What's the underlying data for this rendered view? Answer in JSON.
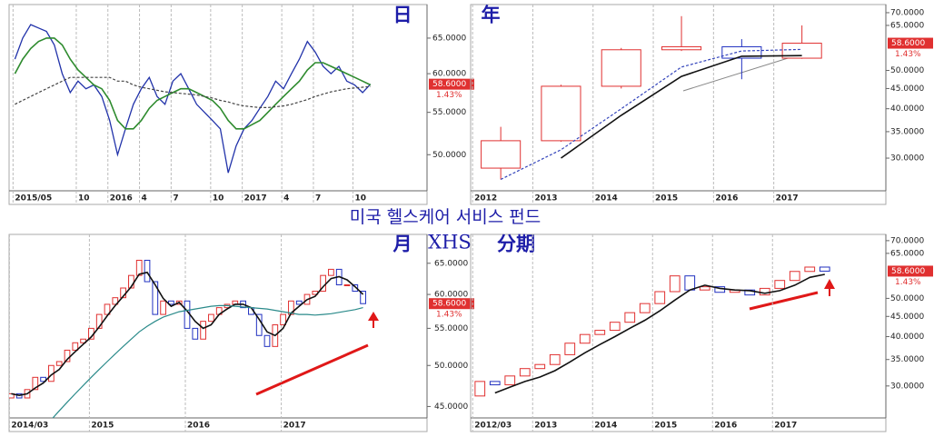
{
  "title": "미국 헬스케어 서비스 펀드",
  "ticker": "XHS",
  "chart_data": [
    {
      "type": "line",
      "title": "日",
      "log_scale": true,
      "color": "#2233aa",
      "categories": [
        "2015/05",
        null,
        null,
        null,
        null,
        null,
        null,
        null,
        "10",
        null,
        null,
        null,
        "2016",
        null,
        null,
        null,
        "4",
        null,
        null,
        null,
        "7",
        null,
        null,
        null,
        null,
        "10",
        null,
        null,
        null,
        "2017",
        null,
        null,
        null,
        null,
        "4",
        null,
        null,
        null,
        "7",
        null,
        null,
        null,
        null,
        "10",
        null,
        null
      ],
      "values": [
        62,
        65,
        67,
        66.5,
        66,
        64,
        60,
        57.5,
        59,
        58,
        58.5,
        57,
        54,
        50,
        53,
        56,
        58,
        59.5,
        57,
        56,
        59,
        60,
        58,
        56,
        55,
        54,
        53,
        48,
        51,
        53,
        54,
        55.5,
        57,
        59,
        58,
        60,
        62,
        64.5,
        63,
        61,
        60,
        61,
        59,
        58.5,
        57.5,
        58.6
      ],
      "overlays": [
        {
          "color": "#2e8b2e",
          "dashed": false,
          "values": [
            60,
            62,
            63.5,
            64.5,
            65,
            65,
            64,
            62,
            60.5,
            59.5,
            58.5,
            58,
            56.5,
            54,
            53,
            53,
            54,
            55.5,
            56.5,
            57,
            57.5,
            58,
            58,
            57.5,
            57,
            56.5,
            55.5,
            54,
            53,
            53,
            53.5,
            54,
            55,
            56,
            57,
            58,
            59,
            60.5,
            61.5,
            61.5,
            61,
            60.5,
            60,
            59.5,
            59,
            58.5
          ]
        },
        {
          "color": "#444444",
          "dashed": true,
          "values": [
            56,
            56.5,
            57,
            57.5,
            58,
            58.5,
            59,
            59.5,
            59.5,
            59.5,
            59.5,
            59.5,
            59.5,
            59,
            59,
            58.5,
            58.2,
            58,
            57.8,
            57.6,
            57.5,
            57.4,
            57.3,
            57.2,
            57,
            56.8,
            56.5,
            56.3,
            56,
            55.8,
            55.7,
            55.6,
            55.6,
            55.7,
            55.8,
            56,
            56.3,
            56.6,
            57,
            57.3,
            57.6,
            57.8,
            58,
            58.1,
            58.2,
            58.3
          ]
        }
      ],
      "ylim": [
        46.1,
        70.1
      ],
      "yticks": [
        {
          "value": 50,
          "label": "50.0000"
        },
        {
          "value": 55,
          "label": "55.0000"
        },
        {
          "value": 60,
          "label": "60.0000"
        },
        {
          "value": 65,
          "label": "65.0000"
        }
      ],
      "last_label": "58.6000",
      "change_label": "1.43%"
    },
    {
      "type": "candlestick",
      "title": "年",
      "log_scale": true,
      "up_color": "#e03030",
      "down_color": "#2030c0",
      "categories": [
        "2012",
        "2013",
        "2014",
        "2015",
        "2016",
        "2017"
      ],
      "open": [
        28.3,
        33.2,
        45.6,
        56.4,
        57.4,
        53.7
      ],
      "high": [
        36,
        46,
        57,
        68.6,
        60,
        65
      ],
      "low": [
        26.5,
        33,
        45,
        56,
        47.5,
        53.5
      ],
      "close": [
        33.2,
        45.6,
        56.4,
        57.4,
        53.7,
        58.6
      ],
      "overlays": [
        {
          "color": "#111111",
          "dashed": false,
          "values": [
            null,
            30,
            38.5,
            48.3,
            54.3,
            54.5
          ]
        },
        {
          "color": "#3344bb",
          "dashed": true,
          "values": [
            26.5,
            31.5,
            40,
            51,
            56,
            56.5
          ]
        }
      ],
      "ylim": [
        24.8,
        73.4
      ],
      "yticks": [
        {
          "value": 30,
          "label": "30.0000"
        },
        {
          "value": 35,
          "label": "35.0000"
        },
        {
          "value": 40,
          "label": "40.0000"
        },
        {
          "value": 45,
          "label": "45.0000"
        },
        {
          "value": 50,
          "label": "50.0000"
        },
        {
          "value": 65,
          "label": "65.0000"
        },
        {
          "value": 70,
          "label": "70.0000"
        }
      ],
      "last_label": "58.6000",
      "change_label": "1.43%"
    },
    {
      "type": "candlestick",
      "title": "月",
      "log_scale": true,
      "up_color": "#e03030",
      "down_color": "#2030c0",
      "categories": [
        "2014/03",
        null,
        null,
        null,
        null,
        null,
        null,
        null,
        null,
        null,
        "2015",
        null,
        null,
        null,
        null,
        null,
        null,
        null,
        null,
        null,
        null,
        null,
        "2016",
        null,
        null,
        null,
        null,
        null,
        null,
        null,
        null,
        null,
        null,
        null,
        "2017",
        null,
        null,
        null,
        null,
        null,
        null,
        null,
        null,
        null,
        null
      ],
      "open": [
        46,
        46.5,
        46,
        47,
        48.5,
        48,
        50,
        50.5,
        52,
        53,
        53.5,
        55,
        57,
        58.5,
        59.5,
        61,
        63,
        65.5,
        62,
        57,
        59,
        58.5,
        59,
        55,
        53.5,
        56,
        57,
        58,
        58.5,
        59,
        58,
        57,
        54,
        52.5,
        55.5,
        57,
        59,
        58.5,
        60,
        60.5,
        63,
        64,
        61.5,
        61.5,
        60.5
      ],
      "close": [
        46.5,
        46,
        47,
        48.5,
        48,
        50,
        50.5,
        52,
        53,
        53.5,
        55,
        57,
        58.5,
        59.5,
        61,
        63,
        65.5,
        62,
        57,
        59,
        58.5,
        59,
        55,
        53.5,
        56,
        57,
        58,
        58.5,
        59,
        58,
        57,
        54,
        52.5,
        55.5,
        57,
        59,
        58.5,
        60,
        60.5,
        63,
        64,
        61.5,
        61.5,
        60.5,
        58.6
      ],
      "overlays": [
        {
          "color": "#111111",
          "dashed": false,
          "values": [
            46.5,
            46.3,
            46.5,
            47.2,
            47.8,
            48.8,
            49.5,
            50.8,
            51.8,
            52.8,
            53.8,
            55.2,
            56.8,
            58.3,
            59.7,
            61.2,
            63.2,
            63.5,
            61.5,
            59.4,
            58.2,
            58.8,
            57.5,
            56,
            55,
            55.5,
            57,
            57.8,
            58.5,
            58.5,
            58,
            56.3,
            54.5,
            54,
            55,
            57.2,
            58.2,
            59.2,
            59.7,
            61.2,
            62.5,
            62.8,
            62.3,
            61.2,
            60
          ]
        },
        {
          "color": "#2a8a8a",
          "dashed": false,
          "values": [
            null,
            null,
            null,
            null,
            null,
            43.5,
            44.5,
            45.5,
            46.5,
            47.5,
            48.5,
            49.5,
            50.5,
            51.5,
            52.5,
            53.5,
            54.5,
            55.3,
            56,
            56.6,
            57,
            57.4,
            57.6,
            57.8,
            58,
            58.2,
            58.3,
            58.3,
            58.2,
            58.1,
            58,
            57.9,
            57.8,
            57.6,
            57.4,
            57.2,
            57,
            57,
            56.9,
            57,
            57.1,
            57.3,
            57.5,
            57.7,
            58
          ]
        }
      ],
      "ylim": [
        43.7,
        70.0
      ],
      "yticks": [
        {
          "value": 45,
          "label": "45.0000"
        },
        {
          "value": 50,
          "label": "50.0000"
        },
        {
          "value": 55,
          "label": "55.0000"
        },
        {
          "value": 60,
          "label": "60.0000"
        },
        {
          "value": 65,
          "label": "65.0000"
        }
      ],
      "last_label": "58.6000",
      "change_label": "1.43%"
    },
    {
      "type": "candlestick",
      "title": "分期",
      "log_scale": true,
      "up_color": "#e03030",
      "down_color": "#2030c0",
      "categories": [
        "2012/03",
        null,
        null,
        null,
        "2013",
        null,
        null,
        null,
        "2014",
        null,
        null,
        null,
        "2015",
        null,
        null,
        null,
        "2016",
        null,
        null,
        null,
        "2017",
        null,
        null,
        null
      ],
      "open": [
        28.3,
        30.8,
        30.2,
        31.8,
        33.2,
        34,
        36,
        38.5,
        40.5,
        41.5,
        43.5,
        46,
        48.5,
        52,
        57,
        52.5,
        53.5,
        51.8,
        52.5,
        51,
        53,
        55.5,
        58.5,
        60
      ],
      "close": [
        30.8,
        30.2,
        31.8,
        33.2,
        34,
        36,
        38.5,
        40.5,
        41.5,
        43.5,
        46,
        48.5,
        52,
        57,
        52.5,
        53.5,
        51.8,
        52.5,
        51,
        53,
        55.5,
        58.5,
        60,
        58.6
      ],
      "overlays": [
        {
          "color": "#111111",
          "dashed": false,
          "values": [
            null,
            28.8,
            29.8,
            30.8,
            31.6,
            32.8,
            34.5,
            36.4,
            38.2,
            40,
            42,
            44,
            46.5,
            49.5,
            52.5,
            54,
            53,
            52.5,
            52.3,
            51.5,
            52.3,
            54,
            56.5,
            57.5
          ]
        }
      ],
      "ylim": [
        24.9,
        72.6
      ],
      "yticks": [
        {
          "value": 30,
          "label": "30.0000"
        },
        {
          "value": 35,
          "label": "35.0000"
        },
        {
          "value": 40,
          "label": "40.0000"
        },
        {
          "value": 45,
          "label": "45.0000"
        },
        {
          "value": 50,
          "label": "50.0000"
        },
        {
          "value": 65,
          "label": "65.0000"
        },
        {
          "value": 70,
          "label": "70.0000"
        }
      ],
      "last_label": "58.6000",
      "change_label": "1.43%"
    }
  ]
}
